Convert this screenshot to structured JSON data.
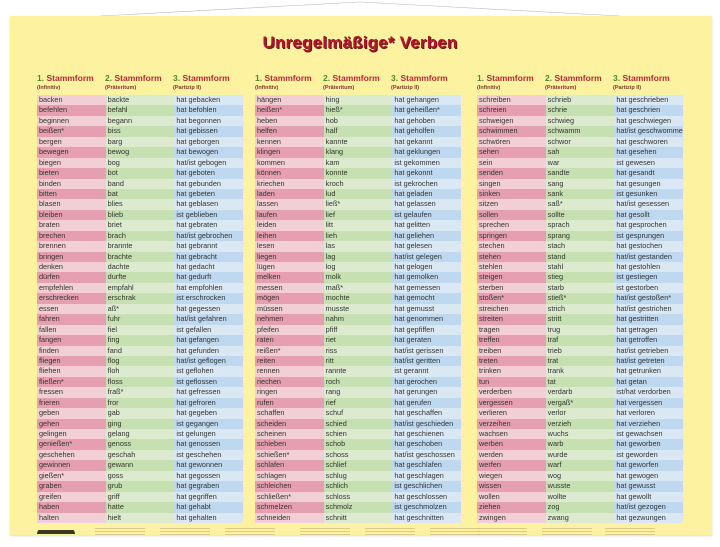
{
  "title": "Unregelmäßige* Verben",
  "headers": [
    {
      "num": "1.",
      "label": "Stammform",
      "sub": "(Infinitiv)"
    },
    {
      "num": "2.",
      "label": "Stammform",
      "sub": "(Präteritum)"
    },
    {
      "num": "3.",
      "label": "Stammform",
      "sub": "(Partizip II)"
    }
  ],
  "colors": {
    "background": "#fcf2a0",
    "title": "#b0172a",
    "infinitiv": "#e59fb1",
    "praeteritum": "#c6e0b2",
    "partizip": "#bdd8ef"
  },
  "groups": [
    {
      "rows": [
        [
          "backen",
          "backte",
          "hat gebacken"
        ],
        [
          "befehlen",
          "befahl",
          "hat befohlen"
        ],
        [
          "beginnen",
          "begann",
          "hat begonnen"
        ],
        [
          "beißen*",
          "biss",
          "hat gebissen"
        ],
        [
          "bergen",
          "barg",
          "hat geborgen"
        ],
        [
          "bewegen",
          "bewog",
          "hat bewogen"
        ],
        [
          "biegen",
          "bog",
          "hat/ist gebogen"
        ],
        [
          "bieten",
          "bot",
          "hat geboten"
        ],
        [
          "binden",
          "band",
          "hat gebunden"
        ],
        [
          "bitten",
          "bat",
          "hat gebeten"
        ],
        [
          "blasen",
          "blies",
          "hat geblasen"
        ],
        [
          "bleiben",
          "blieb",
          "ist geblieben"
        ],
        [
          "braten",
          "briet",
          "hat gebraten"
        ],
        [
          "brechen",
          "brach",
          "hat/ist gebrochen"
        ],
        [
          "brennen",
          "brannte",
          "hat gebrannt"
        ],
        [
          "bringen",
          "brachte",
          "hat gebracht"
        ],
        [
          "denken",
          "dachte",
          "hat gedacht"
        ],
        [
          "dürfen",
          "durfte",
          "hat gedurft"
        ],
        [
          "empfehlen",
          "empfahl",
          "hat empfohlen"
        ],
        [
          "erschrecken",
          "erschrak",
          "ist erschrocken"
        ],
        [
          "essen",
          "aß*",
          "hat gegessen"
        ],
        [
          "fahren",
          "fuhr",
          "hat/ist gefahren"
        ],
        [
          "fallen",
          "fiel",
          "ist gefallen"
        ],
        [
          "fangen",
          "fing",
          "hat gefangen"
        ],
        [
          "finden",
          "fand",
          "hat gefunden"
        ],
        [
          "fliegen",
          "flog",
          "hat/ist geflogen"
        ],
        [
          "fliehen",
          "floh",
          "ist geflohen"
        ],
        [
          "fließen*",
          "floss",
          "ist geflossen"
        ],
        [
          "fressen",
          "fraß*",
          "hat gefressen"
        ],
        [
          "frieren",
          "fror",
          "hat gefroren"
        ],
        [
          "geben",
          "gab",
          "hat gegeben"
        ],
        [
          "gehen",
          "ging",
          "ist gegangen"
        ],
        [
          "gelingen",
          "gelang",
          "ist gelungen"
        ],
        [
          "genießen*",
          "genoss",
          "hat genossen"
        ],
        [
          "geschehen",
          "geschah",
          "ist geschehen"
        ],
        [
          "gewinnen",
          "gewann",
          "hat gewonnen"
        ],
        [
          "gießen*",
          "goss",
          "hat gegossen"
        ],
        [
          "graben",
          "grub",
          "hat gegraben"
        ],
        [
          "greifen",
          "griff",
          "hat gegriffen"
        ],
        [
          "haben",
          "hatte",
          "hat gehabt"
        ],
        [
          "halten",
          "hielt",
          "hat gehalten"
        ]
      ]
    },
    {
      "rows": [
        [
          "hängen",
          "hing",
          "hat gehangen"
        ],
        [
          "heißen*",
          "hieß*",
          "hat geheißen*"
        ],
        [
          "heben",
          "hob",
          "hat gehoben"
        ],
        [
          "helfen",
          "half",
          "hat geholfen"
        ],
        [
          "kennen",
          "kannte",
          "hat gekannt"
        ],
        [
          "klingen",
          "klang",
          "hat geklungen"
        ],
        [
          "kommen",
          "kam",
          "ist gekommen"
        ],
        [
          "können",
          "konnte",
          "hat gekonnt"
        ],
        [
          "kriechen",
          "kroch",
          "ist gekrochen"
        ],
        [
          "laden",
          "lud",
          "hat geladen"
        ],
        [
          "lassen",
          "ließ*",
          "hat gelassen"
        ],
        [
          "laufen",
          "lief",
          "ist gelaufen"
        ],
        [
          "leiden",
          "litt",
          "hat gelitten"
        ],
        [
          "leihen",
          "lieh",
          "hat geliehen"
        ],
        [
          "lesen",
          "las",
          "hat gelesen"
        ],
        [
          "liegen",
          "lag",
          "hat/ist gelegen"
        ],
        [
          "lügen",
          "log",
          "hat gelogen"
        ],
        [
          "melken",
          "molk",
          "hat gemolken"
        ],
        [
          "messen",
          "maß*",
          "hat gemessen"
        ],
        [
          "mögen",
          "mochte",
          "hat gemocht"
        ],
        [
          "müssen",
          "musste",
          "hat gemusst"
        ],
        [
          "nehmen",
          "nahm",
          "hat genommen"
        ],
        [
          "pfeifen",
          "pfiff",
          "hat gepfiffen"
        ],
        [
          "raten",
          "riet",
          "hat geraten"
        ],
        [
          "reißen*",
          "riss",
          "hat/ist gerissen"
        ],
        [
          "reiten",
          "ritt",
          "hat/ist geritten"
        ],
        [
          "rennen",
          "rannte",
          "ist gerannt"
        ],
        [
          "riechen",
          "roch",
          "hat gerochen"
        ],
        [
          "ringen",
          "rang",
          "hat gerungen"
        ],
        [
          "rufen",
          "rief",
          "hat gerufen"
        ],
        [
          "schaffen",
          "schuf",
          "hat geschaffen"
        ],
        [
          "scheiden",
          "schied",
          "hat/ist geschieden"
        ],
        [
          "scheinen",
          "schien",
          "hat geschienen"
        ],
        [
          "schieben",
          "schob",
          "hat geschoben"
        ],
        [
          "schießen*",
          "schoss",
          "hat/ist geschossen"
        ],
        [
          "schlafen",
          "schlief",
          "hat geschlafen"
        ],
        [
          "schlagen",
          "schlug",
          "hat geschlagen"
        ],
        [
          "schleichen",
          "schlich",
          "ist geschlichen"
        ],
        [
          "schließen*",
          "schloss",
          "hat geschlossen"
        ],
        [
          "schmelzen",
          "schmolz",
          "ist geschmolzen"
        ],
        [
          "schneiden",
          "schnitt",
          "hat geschnitten"
        ]
      ]
    },
    {
      "rows": [
        [
          "schreiben",
          "schrieb",
          "hat geschrieben"
        ],
        [
          "schreien",
          "schrie",
          "hat geschrien"
        ],
        [
          "schweigen",
          "schwieg",
          "hat geschwiegen"
        ],
        [
          "schwimmen",
          "schwamm",
          "hat/ist geschwommen"
        ],
        [
          "schwören",
          "schwor",
          "hat geschworen"
        ],
        [
          "sehen",
          "sah",
          "hat gesehen"
        ],
        [
          "sein",
          "war",
          "ist gewesen"
        ],
        [
          "senden",
          "sandte",
          "hat gesandt"
        ],
        [
          "singen",
          "sang",
          "hat gesungen"
        ],
        [
          "sinken",
          "sank",
          "ist gesunken"
        ],
        [
          "sitzen",
          "saß*",
          "hat/ist gesessen"
        ],
        [
          "sollen",
          "sollte",
          "hat gesollt"
        ],
        [
          "sprechen",
          "sprach",
          "hat gesprochen"
        ],
        [
          "springen",
          "sprang",
          "ist gesprungen"
        ],
        [
          "stechen",
          "stach",
          "hat gestochen"
        ],
        [
          "stehen",
          "stand",
          "hat/ist gestanden"
        ],
        [
          "stehlen",
          "stahl",
          "hat gestohlen"
        ],
        [
          "steigen",
          "stieg",
          "ist gestiegen"
        ],
        [
          "sterben",
          "starb",
          "ist gestorben"
        ],
        [
          "stoßen*",
          "stieß*",
          "hat/ist gestoßen*"
        ],
        [
          "streichen",
          "strich",
          "hat/ist gestrichen"
        ],
        [
          "streiten",
          "stritt",
          "hat gestritten"
        ],
        [
          "tragen",
          "trug",
          "hat getragen"
        ],
        [
          "treffen",
          "traf",
          "hat getroffen"
        ],
        [
          "treiben",
          "trieb",
          "hat/ist getrieben"
        ],
        [
          "treten",
          "trat",
          "hat/ist getreten"
        ],
        [
          "trinken",
          "trank",
          "hat getrunken"
        ],
        [
          "tun",
          "tat",
          "hat getan"
        ],
        [
          "verderben",
          "verdarb",
          "ist/hat verdorben"
        ],
        [
          "vergessen",
          "vergaß*",
          "hat vergessen"
        ],
        [
          "verlieren",
          "verlor",
          "hat verloren"
        ],
        [
          "verzeihen",
          "verzieh",
          "hat verziehen"
        ],
        [
          "wachsen",
          "wuchs",
          "ist gewachsen"
        ],
        [
          "werben",
          "warb",
          "hat geworben"
        ],
        [
          "werden",
          "wurde",
          "ist geworden"
        ],
        [
          "werfen",
          "warf",
          "hat geworfen"
        ],
        [
          "wiegen",
          "wog",
          "hat gewogen"
        ],
        [
          "wissen",
          "wusste",
          "hat gewusst"
        ],
        [
          "wollen",
          "wollte",
          "hat gewollt"
        ],
        [
          "ziehen",
          "zog",
          "hat/ist gezogen"
        ],
        [
          "zwingen",
          "zwang",
          "hat gezwungen"
        ]
      ]
    }
  ]
}
